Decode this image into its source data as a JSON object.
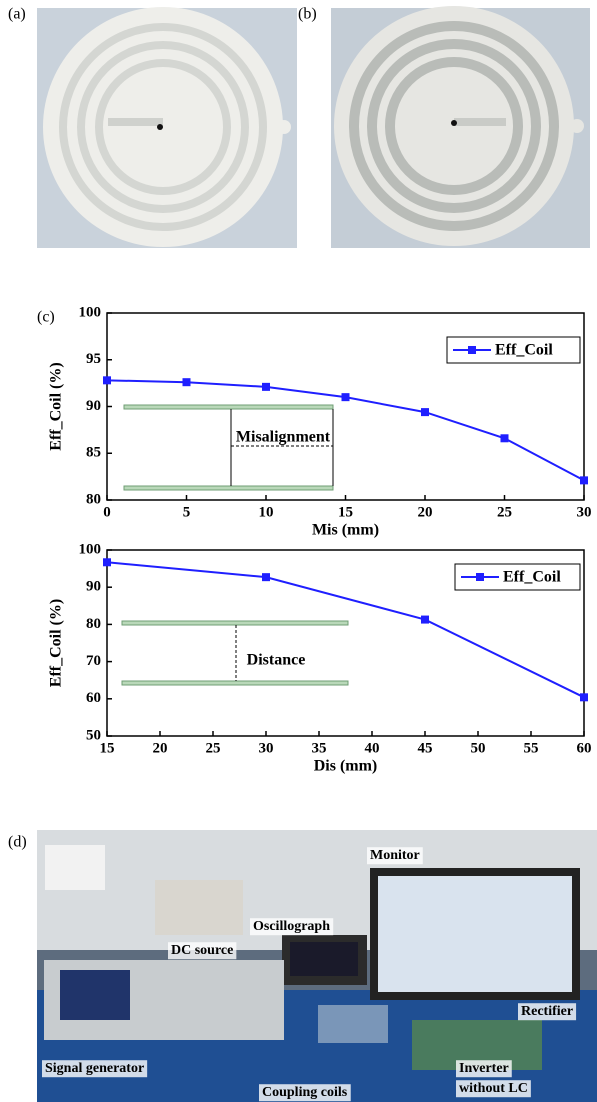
{
  "panels": [
    "(a)",
    "(b)",
    "(c)",
    "(d)"
  ],
  "chart_data": [
    {
      "type": "line",
      "x": [
        0,
        5,
        10,
        15,
        20,
        25,
        30
      ],
      "series": [
        {
          "name": "Eff_Coil",
          "color": "#1f1fff",
          "values": [
            92.8,
            92.6,
            92.1,
            91.0,
            89.4,
            86.6,
            82.1
          ]
        }
      ],
      "xlim": [
        0,
        30
      ],
      "xticks": [
        0,
        5,
        10,
        15,
        20,
        25,
        30
      ],
      "ylim": [
        80,
        100
      ],
      "yticks": [
        80,
        85,
        90,
        95,
        100
      ],
      "x_label": "Mis (mm)",
      "y_label": "Eff_Coil (%)",
      "annotation": "Misalignment",
      "legend": "upper right"
    },
    {
      "type": "line",
      "x": [
        15,
        30,
        45,
        60
      ],
      "series": [
        {
          "name": "Eff_Coil",
          "color": "#1f1fff",
          "values": [
            96.7,
            92.7,
            81.3,
            60.4
          ]
        }
      ],
      "xlim": [
        15,
        60
      ],
      "xticks": [
        15,
        20,
        25,
        30,
        35,
        40,
        45,
        50,
        55,
        60
      ],
      "ylim": [
        50,
        100
      ],
      "yticks": [
        50,
        60,
        70,
        80,
        90,
        100
      ],
      "x_label": "Dis (mm)",
      "y_label": "Eff_Coil (%)",
      "annotation": "Distance",
      "legend": "upper right"
    }
  ],
  "photo_labels": [
    "Monitor",
    "Oscillograph",
    "DC source",
    "Rectifier",
    "Signal generator",
    "Coupling coils",
    "Inverter",
    "without LC"
  ]
}
